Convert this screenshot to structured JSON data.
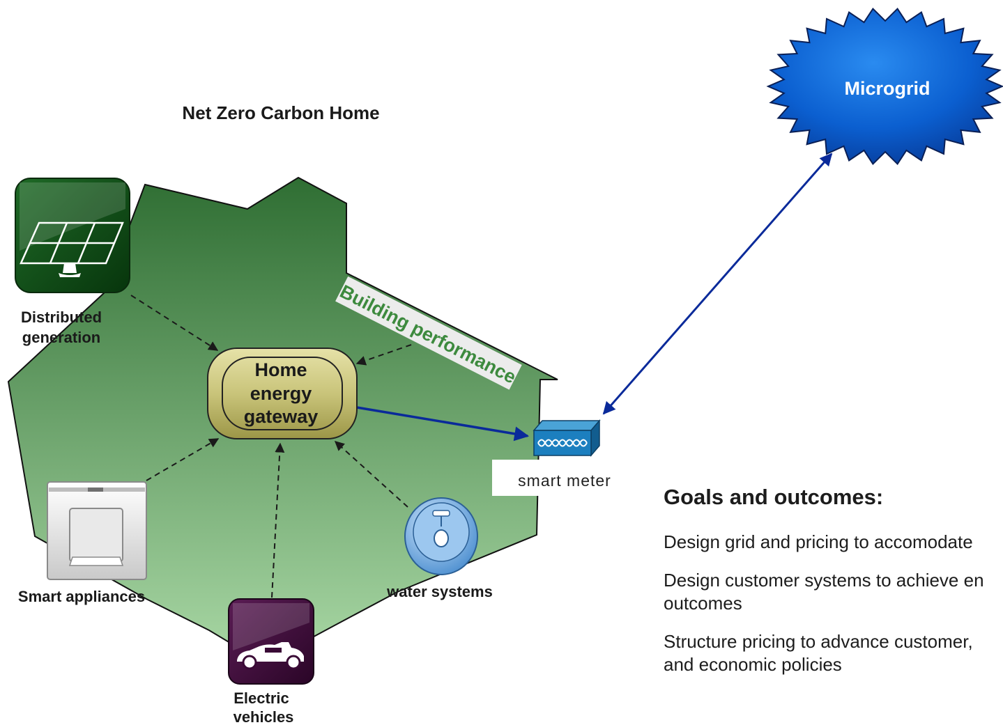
{
  "diagram": {
    "title": "Net Zero Carbon Home",
    "microgrid_label": "Microgrid",
    "gateway_label_lines": [
      "Home",
      "energy",
      "gateway"
    ],
    "building_performance_label": "Building performance",
    "smart_meter_label": "smart meter",
    "distributed_generation_lines": [
      "Distributed",
      "generation"
    ],
    "smart_appliances_label": "Smart appliances",
    "water_systems_label": "water systems",
    "electric_vehicles_lines": [
      "Electric",
      "vehicles"
    ],
    "colors": {
      "house_top": "#2f6e33",
      "house_bottom": "#a6d5a2",
      "arrow_blue": "#0a2a9a",
      "microgrid_blue": "#0b5fd0",
      "gateway_gold": "#c9c47a",
      "solar_green": "#0d4a14",
      "ev_purple": "#3a0a36",
      "meter_blue": "#1c7fbf"
    }
  },
  "goals": {
    "heading": "Goals and outcomes:",
    "items": [
      "Design grid and pricing to accomodate",
      "Design customer systems to achieve en",
      "outcomes",
      "Structure pricing to advance customer,",
      "and economic policies"
    ]
  }
}
